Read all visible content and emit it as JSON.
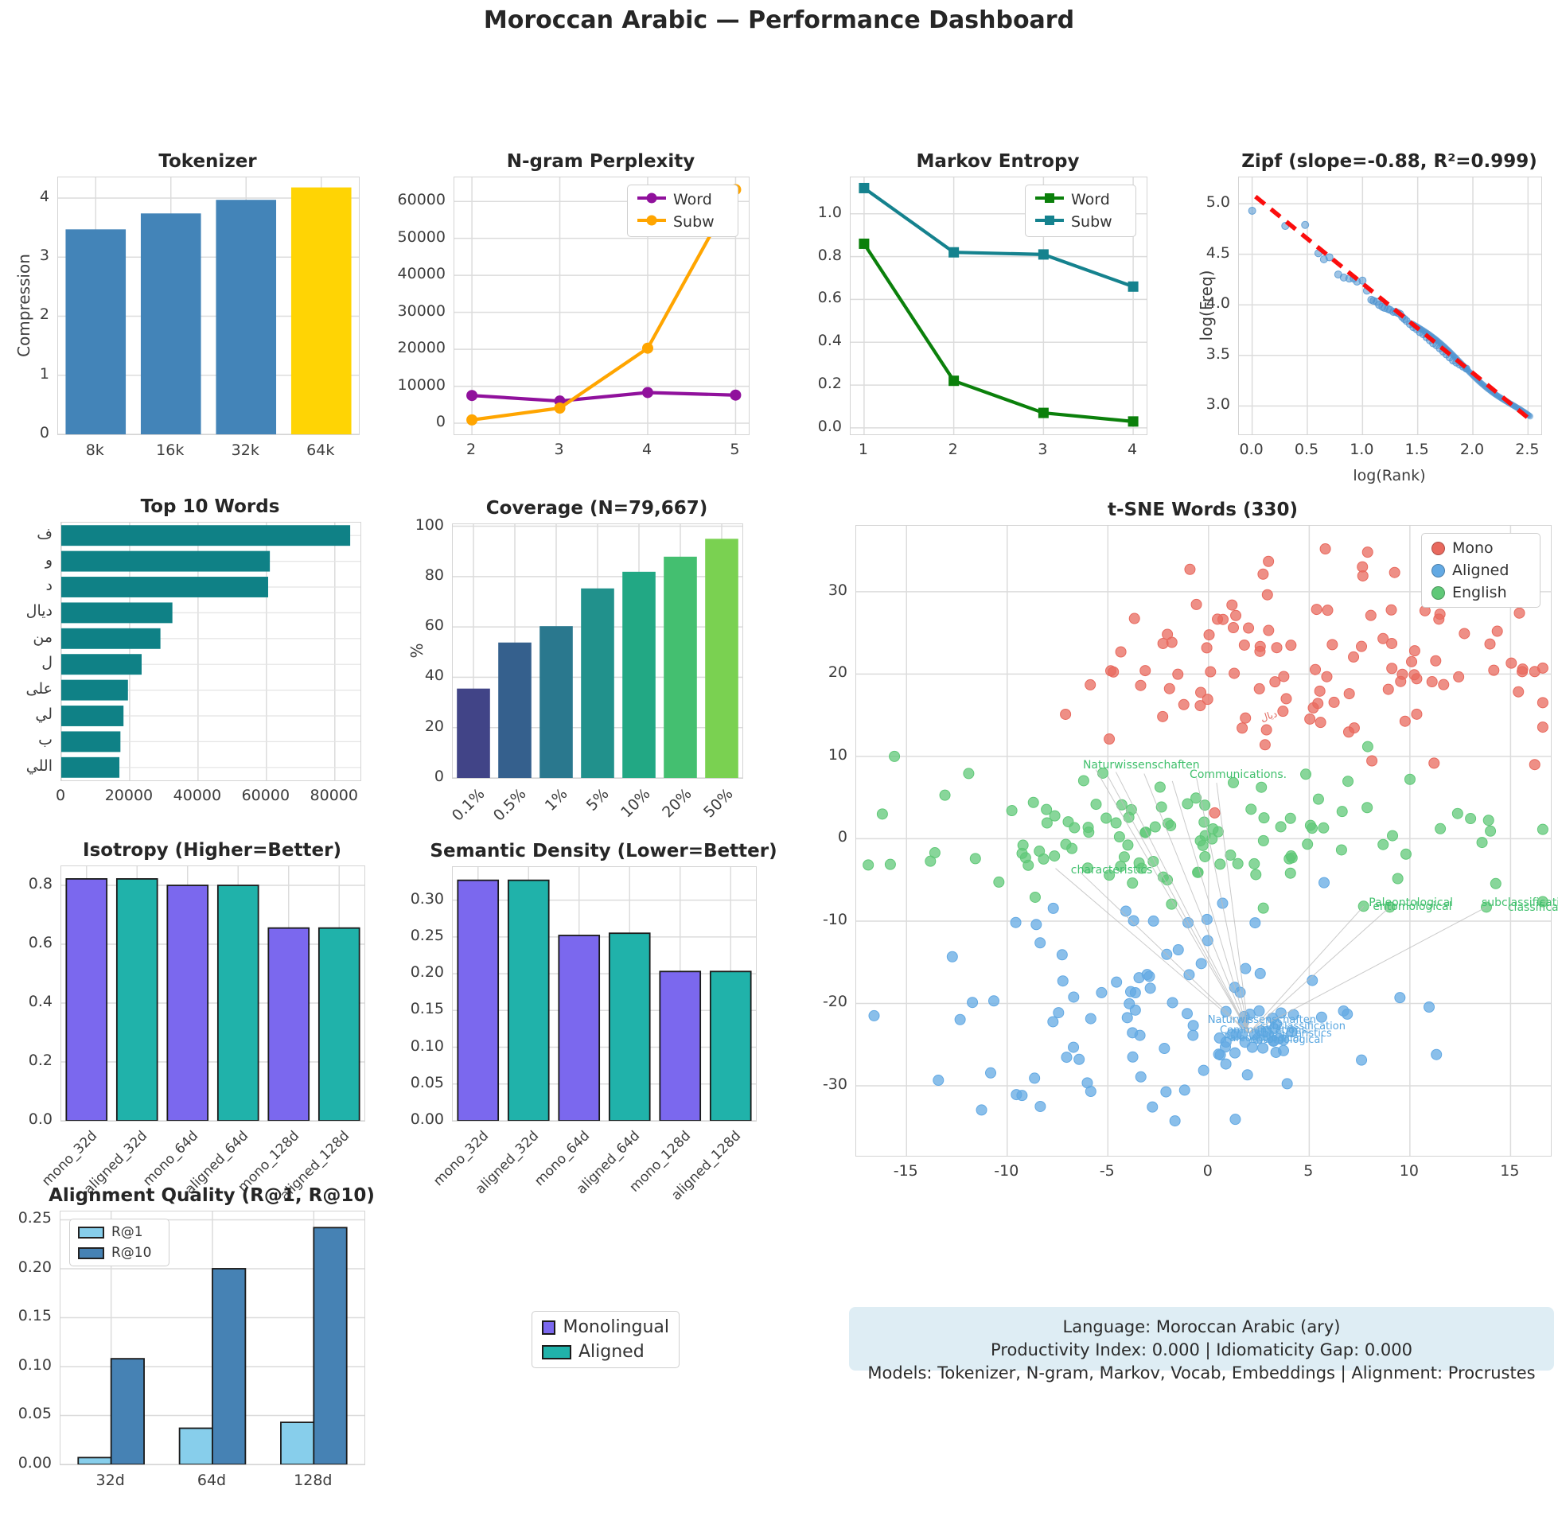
{
  "title": "Moroccan Arabic — Performance Dashboard",
  "info_box": {
    "line1": "Language: Moroccan Arabic (ary)",
    "line2": "Productivity Index: 0.000  |  Idiomaticity Gap: 0.000",
    "line3": "Models: Tokenizer, N-gram, Markov, Vocab, Embeddings  |  Alignment: Procrustes"
  },
  "legend_embeddings": {
    "items": [
      {
        "label": "Monolingual",
        "color": "#7b68ee"
      },
      {
        "label": "Aligned",
        "color": "#20b2aa"
      }
    ]
  },
  "chart_data": [
    {
      "id": "tokenizer",
      "type": "bar",
      "title": "Tokenizer",
      "ylabel": "Compression",
      "categories": [
        "8k",
        "16k",
        "32k",
        "64k"
      ],
      "values": [
        3.47,
        3.74,
        3.97,
        4.18
      ],
      "colors": [
        "#4384b8",
        "#4384b8",
        "#4384b8",
        "#ffd404"
      ],
      "ylim": [
        0,
        4.35
      ],
      "yticks": [
        0,
        1,
        2,
        3,
        4
      ],
      "ydec": 0
    },
    {
      "id": "ngram",
      "type": "line",
      "title": "N-gram Perplexity",
      "x": [
        2,
        3,
        4,
        5
      ],
      "xticks": [
        2,
        3,
        4,
        5
      ],
      "xdec": 0,
      "xlim": [
        1.8,
        5.15
      ],
      "ylim": [
        -3000,
        66500
      ],
      "yticks": [
        0,
        10000,
        20000,
        30000,
        40000,
        50000,
        60000
      ],
      "ydec": 0,
      "marker": "circle",
      "legend_pos": "tr",
      "series": [
        {
          "name": "Word",
          "color": "#90119c",
          "values": [
            7500,
            6000,
            8300,
            7600
          ]
        },
        {
          "name": "Subw",
          "color": "#ffa500",
          "values": [
            900,
            4100,
            20300,
            63200
          ]
        }
      ]
    },
    {
      "id": "markov",
      "type": "line",
      "title": "Markov Entropy",
      "x": [
        1,
        2,
        3,
        4
      ],
      "xticks": [
        1,
        2,
        3,
        4
      ],
      "xdec": 0,
      "xlim": [
        0.85,
        4.15
      ],
      "ylim": [
        -0.03,
        1.17
      ],
      "yticks": [
        0.0,
        0.2,
        0.4,
        0.6,
        0.8,
        1.0
      ],
      "ydec": 1,
      "marker": "square",
      "legend_pos": "tr",
      "series": [
        {
          "name": "Word",
          "color": "#0b800b",
          "values": [
            0.86,
            0.22,
            0.07,
            0.03
          ]
        },
        {
          "name": "Subw",
          "color": "#15828e",
          "values": [
            1.12,
            0.82,
            0.81,
            0.66
          ]
        }
      ]
    },
    {
      "id": "zipf",
      "type": "zipf",
      "title": "Zipf (slope=-0.88, R²=0.999)",
      "xlabel": "log(Rank)",
      "ylabel": "log(Freq)",
      "slope": -0.88,
      "r2": 0.999,
      "xlim": [
        -0.12,
        2.62
      ],
      "xticks": [
        0.0,
        0.5,
        1.0,
        1.5,
        2.0,
        2.5
      ],
      "xdec": 1,
      "ylim": [
        2.72,
        5.26
      ],
      "yticks": [
        3.0,
        3.5,
        4.0,
        4.5,
        5.0
      ],
      "ydec": 1,
      "point_color": "#4f94d0",
      "line_color": "#fb0d0d",
      "fit_line": {
        "x0": 0.03,
        "y0": 5.07,
        "x1": 2.52,
        "y1": 2.865
      },
      "points": [
        [
          0.0,
          4.93
        ],
        [
          0.3,
          4.78
        ],
        [
          0.48,
          4.79
        ],
        [
          0.6,
          4.51
        ],
        [
          0.65,
          4.45
        ],
        [
          0.7,
          4.47
        ],
        [
          0.78,
          4.3
        ],
        [
          0.83,
          4.27
        ],
        [
          0.88,
          4.26
        ],
        [
          0.92,
          4.26
        ],
        [
          0.95,
          4.23
        ],
        [
          1.0,
          4.24
        ],
        [
          1.04,
          4.14
        ],
        [
          1.08,
          4.05
        ],
        [
          1.1,
          4.04
        ],
        [
          1.13,
          4.03
        ],
        [
          1.15,
          4.0
        ],
        [
          1.18,
          3.98
        ],
        [
          1.2,
          3.97
        ],
        [
          1.23,
          3.96
        ],
        [
          1.25,
          3.95
        ],
        [
          1.28,
          3.93
        ],
        [
          1.3,
          3.93
        ],
        [
          1.32,
          3.92
        ],
        [
          1.34,
          3.91
        ],
        [
          1.36,
          3.88
        ],
        [
          1.38,
          3.86
        ],
        [
          1.4,
          3.84
        ],
        [
          1.43,
          3.81
        ],
        [
          1.46,
          3.78
        ],
        [
          1.49,
          3.76
        ],
        [
          1.52,
          3.73
        ],
        [
          1.55,
          3.71
        ],
        [
          1.58,
          3.68
        ],
        [
          1.61,
          3.65
        ],
        [
          1.64,
          3.62
        ],
        [
          1.67,
          3.6
        ],
        [
          1.7,
          3.57
        ],
        [
          1.73,
          3.54
        ],
        [
          1.76,
          3.51
        ],
        [
          1.79,
          3.48
        ],
        [
          1.82,
          3.45
        ],
        [
          1.85,
          3.43
        ],
        [
          1.88,
          3.41
        ],
        [
          1.91,
          3.39
        ],
        [
          1.94,
          3.37
        ]
      ],
      "rope": {
        "x0": 1.45,
        "x1": 2.52,
        "n": 130
      }
    },
    {
      "id": "topwords",
      "type": "barh",
      "title": "Top 10 Words",
      "categories": [
        "ف",
        "و",
        "د",
        "ديال",
        "من",
        "ل",
        "على",
        "لي",
        "ب",
        "اللي"
      ],
      "values": [
        84500,
        61000,
        60500,
        32500,
        29000,
        23500,
        19500,
        18200,
        17300,
        17000
      ],
      "color": "#0f8186",
      "xlim": [
        0,
        87500
      ],
      "xticks": [
        0,
        20000,
        40000,
        60000,
        80000
      ],
      "xdec": 0
    },
    {
      "id": "coverage",
      "type": "bar",
      "title": "Coverage (N=79,667)",
      "ylabel": "%",
      "categories": [
        "0.1%",
        "0.5%",
        "1%",
        "5%",
        "10%",
        "20%",
        "50%"
      ],
      "values": [
        35.5,
        53.8,
        60.3,
        75.3,
        81.9,
        87.9,
        95.0
      ],
      "colors": [
        "#414487",
        "#35608d",
        "#2a788e",
        "#21918c",
        "#22a884",
        "#44bf70",
        "#7ad151"
      ],
      "ylim": [
        0,
        100.8
      ],
      "yticks": [
        0,
        20,
        40,
        60,
        80,
        100
      ],
      "ydec": 0,
      "rotate": true
    },
    {
      "id": "tsne",
      "type": "tsne",
      "title": "t-SNE Words (330)",
      "xlim": [
        -17.5,
        17.0
      ],
      "xticks": [
        -15,
        -10,
        -5,
        0,
        5,
        10,
        15
      ],
      "xdec": 0,
      "ylim": [
        -38.5,
        38.0
      ],
      "yticks": [
        -30,
        -20,
        -10,
        0,
        10,
        20,
        30
      ],
      "ydec": 0,
      "seed": 42,
      "legend": [
        {
          "name": "Mono",
          "color": "#e8695e"
        },
        {
          "name": "Aligned",
          "color": "#63a9e3"
        },
        {
          "name": "English",
          "color": "#60c878"
        }
      ],
      "clusters": [
        {
          "group": "mono",
          "color": "#e8695e",
          "count": 105,
          "cx": 4.5,
          "cy": 21.5,
          "sx": 6.3,
          "sy": 5.6
        },
        {
          "group": "english",
          "color": "#60c878",
          "count": 110,
          "cx": -0.5,
          "cy": 0.8,
          "sx": 7.4,
          "sy": 3.6
        },
        {
          "group": "aligned",
          "color": "#63a9e3",
          "count": 85,
          "cx": -3.0,
          "cy": -21.0,
          "sx": 6.3,
          "sy": 7.0
        },
        {
          "group": "aligned",
          "color": "#63a9e3",
          "count": 30,
          "cx": 2.0,
          "cy": -24.3,
          "sx": 1.3,
          "sy": 1.5
        }
      ],
      "extra_points": [
        {
          "color": "#e8695e",
          "pts": [
            [
              16.2,
              9.0
            ],
            [
              15.6,
              20.6
            ],
            [
              16.2,
              20.3
            ],
            [
              5.8,
              35.2
            ],
            [
              7.9,
              34.8
            ]
          ]
        },
        {
          "color": "#60c878",
          "pts": [
            [
              -15.6,
              10.0
            ],
            [
              -16.2,
              3.0
            ],
            [
              7.7,
              -8.2
            ],
            [
              9.0,
              -8.3
            ],
            [
              13.8,
              -8.3
            ]
          ]
        }
      ],
      "annotation_colors": {
        "green": "#41c06d",
        "blue": "#5aa7e0",
        "red": "#e0695f"
      },
      "annotations": [
        {
          "text": "Naturwissenschaften",
          "x": -6.2,
          "y": 8.7,
          "color": "green",
          "size": 14
        },
        {
          "text": "Communications.",
          "x": -0.9,
          "y": 7.6,
          "color": "green",
          "size": 14
        },
        {
          "text": "characteristics",
          "x": -6.8,
          "y": -4.0,
          "color": "green",
          "size": 14
        },
        {
          "text": "Paleontological",
          "x": 8.0,
          "y": -8.0,
          "color": "green",
          "size": 14
        },
        {
          "text": "entomological",
          "x": 8.2,
          "y": -8.5,
          "color": "green",
          "size": 14
        },
        {
          "text": "subclassification",
          "x": 13.6,
          "y": -8.0,
          "color": "green",
          "size": 14
        },
        {
          "text": "classification",
          "x": 14.9,
          "y": -8.6,
          "color": "green",
          "size": 14
        },
        {
          "text": "Naturwissenschaften",
          "x": 0.0,
          "y": -22.3,
          "color": "blue",
          "size": 13
        },
        {
          "text": "subclassification",
          "x": 2.6,
          "y": -23.0,
          "color": "blue",
          "size": 13
        },
        {
          "text": "Communications.",
          "x": 0.6,
          "y": -23.5,
          "color": "blue",
          "size": 13
        },
        {
          "text": "characteristics",
          "x": 2.4,
          "y": -23.9,
          "color": "blue",
          "size": 13
        },
        {
          "text": "Paleontological",
          "x": 0.8,
          "y": -24.5,
          "color": "blue",
          "size": 13
        },
        {
          "text": "entomological",
          "x": 2.1,
          "y": -24.7,
          "color": "blue",
          "size": 13
        },
        {
          "text": "ديال",
          "x": 2.6,
          "y": 14.6,
          "color": "red",
          "size": 12,
          "rotate": -18
        }
      ],
      "connectors": {
        "hub": [
          2.0,
          -23.6
        ],
        "targets": [
          [
            -5.6,
            8.4
          ],
          [
            -4.6,
            8.1
          ],
          [
            -3.2,
            7.9
          ],
          [
            -0.6,
            7.4
          ],
          [
            -1.8,
            7.0
          ],
          [
            0.4,
            6.8
          ],
          [
            -6.4,
            -4.0
          ],
          [
            -7.6,
            -3.6
          ],
          [
            7.7,
            -8.2
          ],
          [
            9.0,
            -8.3
          ],
          [
            13.8,
            -8.3
          ],
          [
            -5.0,
            7.6
          ]
        ]
      }
    },
    {
      "id": "isotropy",
      "type": "bar",
      "title": "Isotropy (Higher=Better)",
      "categories": [
        "mono_32d",
        "aligned_32d",
        "mono_64d",
        "aligned_64d",
        "mono_128d",
        "aligned_128d"
      ],
      "values": [
        0.822,
        0.822,
        0.8,
        0.8,
        0.655,
        0.655
      ],
      "colors": [
        "#7b68ee",
        "#20b2aa",
        "#7b68ee",
        "#20b2aa",
        "#7b68ee",
        "#20b2aa"
      ],
      "edge": "#1a1a1a",
      "ylim": [
        0,
        0.865
      ],
      "yticks": [
        0.0,
        0.2,
        0.4,
        0.6,
        0.8
      ],
      "ydec": 1,
      "rotate": true,
      "catsize": 17
    },
    {
      "id": "semantic",
      "type": "bar",
      "title": "Semantic Density (Lower=Better)",
      "categories": [
        "mono_32d",
        "aligned_32d",
        "mono_64d",
        "aligned_64d",
        "mono_128d",
        "aligned_128d"
      ],
      "values": [
        0.327,
        0.327,
        0.252,
        0.255,
        0.203,
        0.203
      ],
      "colors": [
        "#7b68ee",
        "#20b2aa",
        "#7b68ee",
        "#20b2aa",
        "#7b68ee",
        "#20b2aa"
      ],
      "edge": "#1a1a1a",
      "ylim": [
        0,
        0.345
      ],
      "yticks": [
        0.0,
        0.05,
        0.1,
        0.15,
        0.2,
        0.25,
        0.3
      ],
      "ydec": 2,
      "rotate": true,
      "catsize": 17
    },
    {
      "id": "alignment",
      "type": "grouped",
      "title": "Alignment Quality (R@1, R@10)",
      "groups": [
        "32d",
        "64d",
        "128d"
      ],
      "series": [
        {
          "name": "R@1",
          "color": "#87ceeb",
          "values": [
            0.007,
            0.037,
            0.043
          ]
        },
        {
          "name": "R@10",
          "color": "#4682b4",
          "values": [
            0.108,
            0.2,
            0.242
          ]
        }
      ],
      "edge": "#1a1a1a",
      "ylim": [
        0,
        0.2585
      ],
      "yticks": [
        0.0,
        0.05,
        0.1,
        0.15,
        0.2,
        0.25
      ],
      "ydec": 2
    }
  ]
}
